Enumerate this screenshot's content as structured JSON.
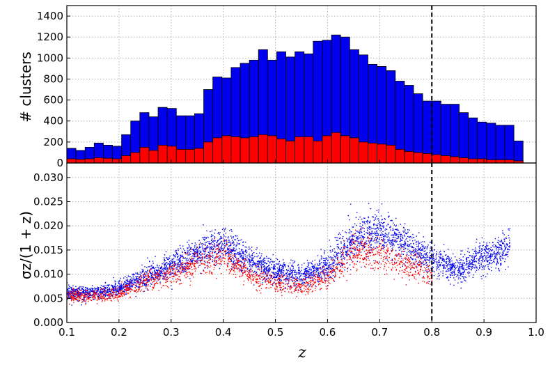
{
  "chart_data": [
    {
      "type": "bar",
      "panel": "top",
      "ylabel": "# clusters",
      "xlim": [
        0.1,
        1.0
      ],
      "ylim": [
        0,
        1500
      ],
      "yticks": [
        "0",
        "200",
        "400",
        "600",
        "800",
        "1000",
        "1200",
        "1400"
      ],
      "grid": true,
      "bin_width": 0.0175,
      "bin_start": 0.1,
      "series": [
        {
          "color": "#0000ee",
          "values": [
            140,
            120,
            150,
            190,
            170,
            160,
            270,
            400,
            480,
            440,
            530,
            520,
            450,
            450,
            470,
            700,
            820,
            810,
            910,
            950,
            980,
            1080,
            980,
            1060,
            1010,
            1060,
            1040,
            1160,
            1170,
            1220,
            1200,
            1080,
            1030,
            940,
            920,
            880,
            780,
            740,
            660,
            590,
            590,
            560,
            560,
            480,
            430,
            390,
            380,
            360,
            360,
            210
          ]
        },
        {
          "color": "#ff0000",
          "values": [
            40,
            35,
            40,
            50,
            45,
            40,
            70,
            100,
            150,
            120,
            170,
            160,
            130,
            130,
            140,
            200,
            240,
            260,
            250,
            240,
            250,
            270,
            260,
            230,
            210,
            250,
            250,
            210,
            260,
            290,
            260,
            240,
            200,
            190,
            180,
            170,
            130,
            110,
            100,
            90,
            80,
            70,
            60,
            50,
            40,
            40,
            30,
            30,
            30,
            20
          ]
        }
      ],
      "reference_line_x": 0.8
    },
    {
      "type": "scatter",
      "panel": "bottom",
      "xlabel": "z",
      "ylabel": "σz/(1 + z)",
      "xlim": [
        0.1,
        1.0
      ],
      "ylim": [
        0.0,
        0.033
      ],
      "xticks": [
        "0.1",
        "0.2",
        "0.3",
        "0.4",
        "0.5",
        "0.6",
        "0.7",
        "0.8",
        "0.9",
        "1.0"
      ],
      "yticks": [
        "0.000",
        "0.005",
        "0.010",
        "0.015",
        "0.020",
        "0.025",
        "0.030"
      ],
      "grid": true,
      "series": [
        {
          "color": "#0000ee",
          "trend_x": [
            0.1,
            0.15,
            0.2,
            0.25,
            0.3,
            0.35,
            0.4,
            0.45,
            0.5,
            0.55,
            0.6,
            0.65,
            0.7,
            0.75,
            0.8,
            0.85,
            0.9,
            0.95
          ],
          "trend_y": [
            0.0062,
            0.006,
            0.007,
            0.0095,
            0.0115,
            0.014,
            0.016,
            0.0125,
            0.0105,
            0.0095,
            0.0115,
            0.0175,
            0.019,
            0.016,
            0.013,
            0.011,
            0.0135,
            0.0155
          ]
        },
        {
          "color": "#ff0000",
          "trend_x": [
            0.1,
            0.15,
            0.2,
            0.25,
            0.3,
            0.35,
            0.4,
            0.45,
            0.5,
            0.55,
            0.6,
            0.65,
            0.7,
            0.75,
            0.8
          ],
          "trend_y": [
            0.0055,
            0.0054,
            0.006,
            0.0085,
            0.01,
            0.012,
            0.0138,
            0.01,
            0.008,
            0.0075,
            0.009,
            0.015,
            0.014,
            0.012,
            0.01
          ]
        }
      ],
      "reference_line_x": 0.8
    }
  ]
}
